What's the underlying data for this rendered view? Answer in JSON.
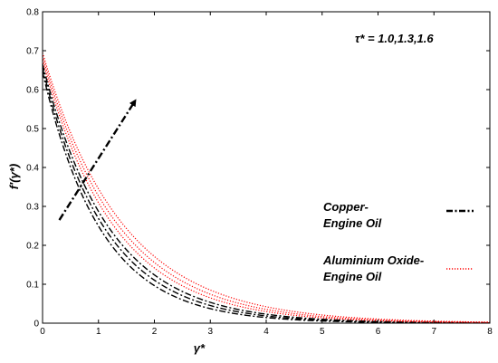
{
  "chart_data": {
    "type": "line",
    "xlabel": "γ*",
    "ylabel": "f′(γ*)",
    "xlim": [
      0,
      8
    ],
    "ylim": [
      0,
      0.8
    ],
    "xticks": [
      "0",
      "1",
      "2",
      "3",
      "4",
      "5",
      "6",
      "7",
      "8"
    ],
    "yticks": [
      "0",
      "0.1",
      "0.2",
      "0.3",
      "0.4",
      "0.5",
      "0.6",
      "0.7",
      "0.8"
    ],
    "grid": false,
    "annotation": "τ* = 1.0,1.3,1.6",
    "arrow": {
      "from": [
        0.3,
        0.265
      ],
      "to": [
        1.65,
        0.57
      ]
    },
    "legend": [
      {
        "label_line1": "Copper-",
        "label_line2": "Engine Oil",
        "color": "#000000",
        "style": "dashdot"
      },
      {
        "label_line1": "Aluminium Oxide-",
        "label_line2": "Engine Oil",
        "color": "#ff0000",
        "style": "dotted"
      }
    ],
    "series": [
      {
        "group": "Copper-Engine Oil",
        "tau": "1.0",
        "color": "#000000",
        "style": "dashdot",
        "f0": 0.645,
        "decay": 0.95
      },
      {
        "group": "Copper-Engine Oil",
        "tau": "1.3",
        "color": "#000000",
        "style": "dashdot",
        "f0": 0.655,
        "decay": 0.89
      },
      {
        "group": "Copper-Engine Oil",
        "tau": "1.6",
        "color": "#000000",
        "style": "dashdot",
        "f0": 0.665,
        "decay": 0.84
      },
      {
        "group": "Aluminium Oxide-Engine Oil",
        "tau": "1.0",
        "color": "#ff0000",
        "style": "dotted",
        "f0": 0.675,
        "decay": 0.78
      },
      {
        "group": "Aluminium Oxide-Engine Oil",
        "tau": "1.3",
        "color": "#ff0000",
        "style": "dotted",
        "f0": 0.685,
        "decay": 0.74
      },
      {
        "group": "Aluminium Oxide-Engine Oil",
        "tau": "1.6",
        "color": "#ff0000",
        "style": "dotted",
        "f0": 0.695,
        "decay": 0.7
      }
    ]
  }
}
